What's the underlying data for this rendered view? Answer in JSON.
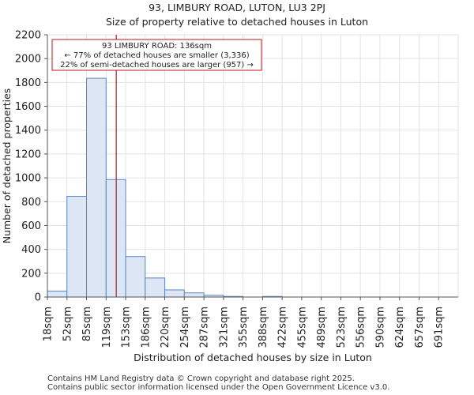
{
  "chart_data": {
    "type": "bar",
    "title": "93, LIMBURY ROAD, LUTON, LU3 2PJ",
    "subtitle": "Size of property relative to detached houses in Luton",
    "xlabel": "Distribution of detached houses by size in Luton",
    "ylabel": "Number of detached properties",
    "categories": [
      "18sqm",
      "52sqm",
      "85sqm",
      "119sqm",
      "153sqm",
      "186sqm",
      "220sqm",
      "254sqm",
      "287sqm",
      "321sqm",
      "355sqm",
      "388sqm",
      "422sqm",
      "455sqm",
      "489sqm",
      "523sqm",
      "556sqm",
      "590sqm",
      "624sqm",
      "657sqm",
      "691sqm"
    ],
    "values": [
      50,
      845,
      1835,
      985,
      340,
      160,
      60,
      35,
      15,
      5,
      0,
      5,
      0,
      0,
      0,
      0,
      0,
      0,
      0,
      0,
      0
    ],
    "ylim": [
      0,
      2200
    ],
    "yticks": [
      0,
      200,
      400,
      600,
      800,
      1000,
      1200,
      1400,
      1600,
      1800,
      2000,
      2200
    ],
    "grid": true,
    "bar_color": "#dce6f5",
    "bar_edge_color": "#5b86c4",
    "marker": {
      "value_bin_position": 3.52,
      "color": "#c0141c",
      "annotation_lines": [
        "93 LIMBURY ROAD: 136sqm",
        "← 77% of detached houses are smaller (3,336)",
        "22% of semi-detached houses are larger (957) →"
      ]
    }
  },
  "footer": {
    "line1": "Contains HM Land Registry data © Crown copyright and database right 2025.",
    "line2": "Contains public sector information licensed under the Open Government Licence v3.0."
  }
}
